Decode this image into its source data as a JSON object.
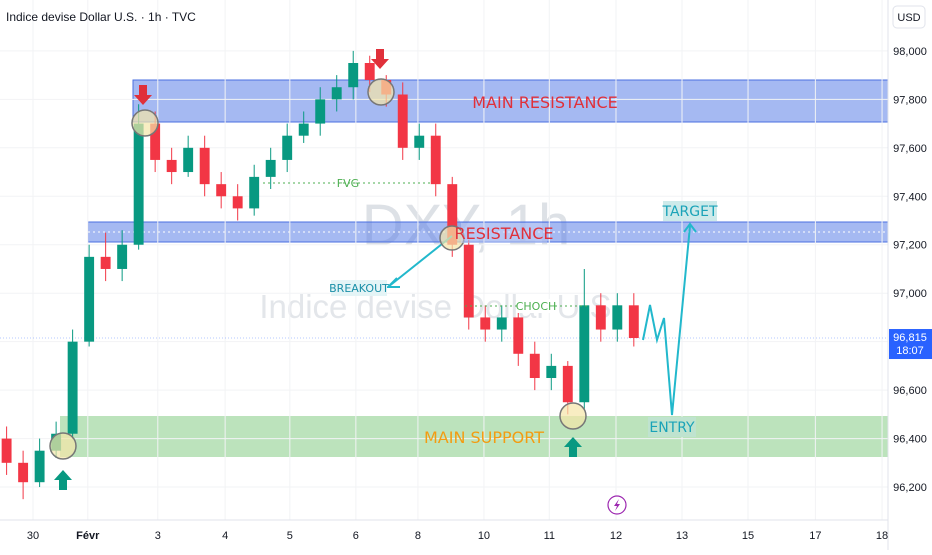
{
  "chart_data": {
    "type": "candlestick",
    "title": "Indice devise Dollar U.S. · 1h · TVC",
    "currency": "USD",
    "watermark": [
      "DXY, 1h",
      "Indice devise Dollar U.S."
    ],
    "x": [
      -0.4,
      -0.15,
      0.1,
      0.35,
      0.6,
      0.85,
      1.1,
      1.35,
      1.6,
      1.85,
      2.1,
      2.35,
      2.6,
      2.85,
      3.1,
      3.35,
      3.6,
      3.85,
      4.1,
      4.35,
      4.6,
      4.85,
      5.1,
      5.35,
      5.6,
      5.85,
      6.1,
      6.35,
      6.6,
      6.85,
      7.1,
      7.35,
      7.6,
      7.85,
      8.1,
      8.35,
      8.6,
      8.85,
      9.1
    ],
    "open": [
      96400,
      96300,
      96220,
      96350,
      96420,
      96800,
      97150,
      97100,
      97200,
      97700,
      97550,
      97500,
      97600,
      97450,
      97400,
      97350,
      97480,
      97550,
      97650,
      97700,
      97800,
      97850,
      97950,
      97880,
      97820,
      97600,
      97650,
      97450,
      97200,
      96900,
      96850,
      96900,
      96750,
      96650,
      96700,
      96550,
      96950,
      96850,
      96950
    ],
    "high": [
      96450,
      96350,
      96400,
      96470,
      96850,
      97200,
      97250,
      97260,
      97780,
      97750,
      97600,
      97650,
      97650,
      97500,
      97450,
      97530,
      97600,
      97700,
      97750,
      97850,
      97900,
      98000,
      97980,
      97900,
      97870,
      97700,
      97700,
      97480,
      97220,
      96950,
      96950,
      96950,
      96800,
      96750,
      96720,
      97100,
      97000,
      97000,
      97000
    ],
    "low": [
      96250,
      96150,
      96200,
      96320,
      96400,
      96780,
      97050,
      97050,
      97180,
      97500,
      97450,
      97480,
      97400,
      97350,
      97300,
      97320,
      97430,
      97500,
      97620,
      97650,
      97750,
      97800,
      97830,
      97770,
      97550,
      97550,
      97400,
      97150,
      96850,
      96800,
      96800,
      96700,
      96600,
      96600,
      96500,
      96520,
      96800,
      96800,
      96780
    ],
    "close": [
      96300,
      96220,
      96350,
      96420,
      96800,
      97150,
      97100,
      97200,
      97700,
      97550,
      97500,
      97600,
      97450,
      97400,
      97350,
      97480,
      97550,
      97650,
      97700,
      97800,
      97850,
      97950,
      97880,
      97820,
      97600,
      97650,
      97450,
      97200,
      96900,
      96850,
      96900,
      96750,
      96650,
      96700,
      96550,
      96950,
      96850,
      96950,
      96815
    ],
    "up_color": "#089981",
    "down_color": "#f23645",
    "xlim": [
      -0.5,
      12.95
    ],
    "xticks": [
      {
        "value": 0,
        "label": "30"
      },
      {
        "value": 0.83,
        "label": "Févr"
      },
      {
        "value": 1.89,
        "label": "3"
      },
      {
        "value": 2.91,
        "label": "4"
      },
      {
        "value": 3.89,
        "label": "5"
      },
      {
        "value": 4.89,
        "label": "6"
      },
      {
        "value": 5.83,
        "label": "8"
      },
      {
        "value": 6.83,
        "label": "10"
      },
      {
        "value": 7.82,
        "label": "11"
      },
      {
        "value": 8.83,
        "label": "12"
      },
      {
        "value": 9.83,
        "label": "13"
      },
      {
        "value": 10.83,
        "label": "15"
      },
      {
        "value": 11.85,
        "label": "17"
      },
      {
        "value": 12.86,
        "label": "18"
      }
    ],
    "ylim": [
      96064,
      98210
    ],
    "yticks": [
      {
        "value": 96200,
        "label": "96,200"
      },
      {
        "value": 96400,
        "label": "96,400"
      },
      {
        "value": 96600,
        "label": "96,600"
      },
      {
        "value": 96800,
        "label": "96,800"
      },
      {
        "value": 97000,
        "label": "97,000"
      },
      {
        "value": 97200,
        "label": "97,200"
      },
      {
        "value": 97400,
        "label": "97,400"
      },
      {
        "value": 97600,
        "label": "97,600"
      },
      {
        "value": 97800,
        "label": "97,800"
      },
      {
        "value": 98000,
        "label": "98,000"
      }
    ],
    "last_price": {
      "value": 96815,
      "label": "96,815"
    },
    "countdown": "18:07",
    "annotations": [
      "MAIN RESISTANCE",
      "RESISTANCE",
      "MAIN SUPPORT",
      "FVG",
      "CHOCH",
      "BREAKOUT",
      "TARGET",
      "ENTRY"
    ]
  }
}
